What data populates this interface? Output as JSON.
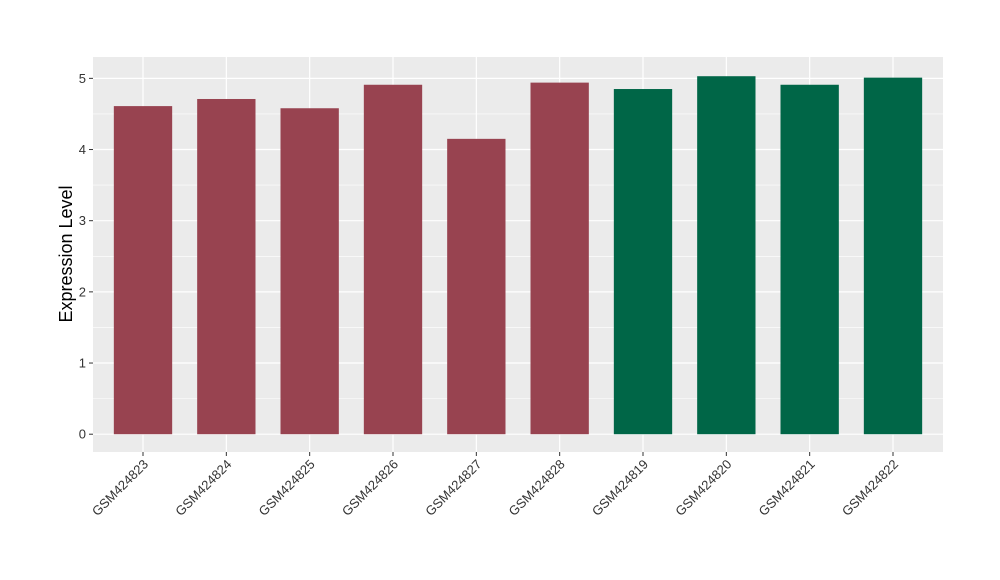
{
  "chart_data": {
    "type": "bar",
    "title": "",
    "xlabel": "",
    "ylabel": "Expression Level",
    "ylim": [
      -0.25,
      5.3
    ],
    "yticks": [
      0,
      1,
      2,
      3,
      4,
      5
    ],
    "grid": true,
    "legend": "none",
    "categories": [
      "GSM424823",
      "GSM424824",
      "GSM424825",
      "GSM424826",
      "GSM424827",
      "GSM424828",
      "GSM424819",
      "GSM424820",
      "GSM424821",
      "GSM424822"
    ],
    "values": [
      4.61,
      4.71,
      4.58,
      4.91,
      4.15,
      4.94,
      4.85,
      5.03,
      4.91,
      5.01
    ],
    "bar_colors": [
      "#984350",
      "#984350",
      "#984350",
      "#984350",
      "#984350",
      "#984350",
      "#006647",
      "#006647",
      "#006647",
      "#006647"
    ],
    "panel_background": "#ebebeb",
    "grid_color": "#ffffff"
  }
}
